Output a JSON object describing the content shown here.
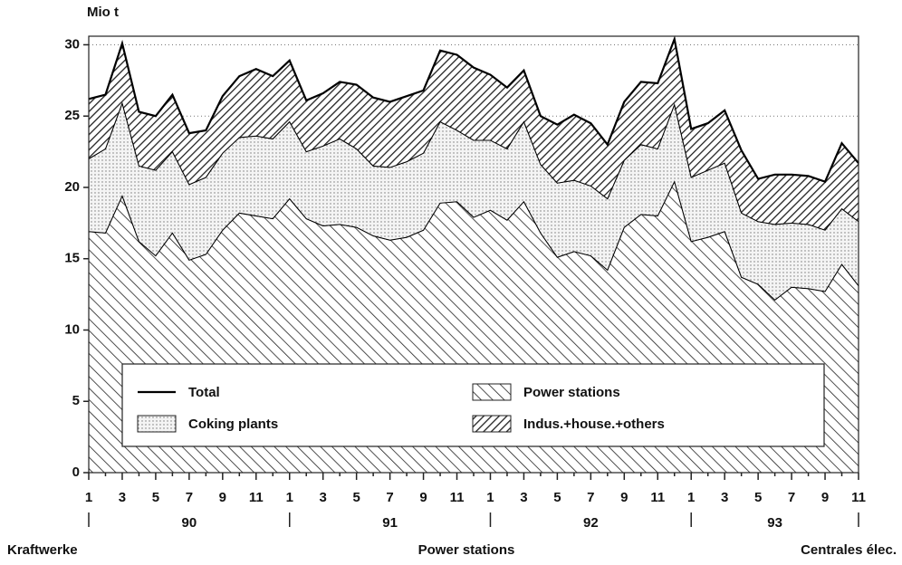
{
  "chart_data": {
    "type": "stacked_area",
    "y_axis_label": "Mio t",
    "categories": [
      "1",
      null,
      "3",
      null,
      "5",
      null,
      "7",
      null,
      "9",
      null,
      "11",
      null,
      "1",
      null,
      "3",
      null,
      "5",
      null,
      "7",
      null,
      "9",
      null,
      "11",
      null,
      "1",
      null,
      "3",
      null,
      "5",
      null,
      "7",
      null,
      "9",
      null,
      "11",
      null,
      "1",
      null,
      "3",
      null,
      "5",
      null,
      "7",
      null,
      "9",
      null,
      "11"
    ],
    "x_groups": [
      {
        "label": "90",
        "start": 0,
        "end": 12
      },
      {
        "label": "91",
        "start": 12,
        "end": 24
      },
      {
        "label": "92",
        "start": 24,
        "end": 36
      },
      {
        "label": "93",
        "start": 36,
        "end": 46
      }
    ],
    "series": [
      {
        "name": "Total",
        "kind": "line",
        "color": "#000000",
        "values": [
          26.2,
          26.5,
          30.1,
          25.3,
          25.0,
          26.5,
          23.8,
          24.0,
          26.4,
          27.8,
          28.3,
          27.8,
          28.9,
          26.1,
          26.6,
          27.4,
          27.2,
          26.3,
          26.0,
          26.4,
          26.8,
          29.6,
          29.3,
          28.4,
          27.9,
          27.0,
          28.2,
          25.0,
          24.4,
          25.1,
          24.5,
          23.0,
          26.0,
          27.4,
          27.3,
          30.4,
          24.1,
          24.5,
          25.4,
          22.6,
          20.6,
          20.9,
          20.9,
          20.8,
          20.4,
          23.1,
          21.7
        ]
      },
      {
        "name": "Power stations",
        "kind": "area",
        "pattern": "backslash",
        "color": "#000000",
        "values": [
          16.9,
          16.8,
          19.4,
          16.2,
          15.2,
          16.8,
          14.9,
          15.3,
          17.0,
          18.2,
          18.0,
          17.8,
          19.2,
          17.8,
          17.3,
          17.4,
          17.2,
          16.6,
          16.3,
          16.5,
          17.0,
          18.9,
          19.0,
          17.9,
          18.4,
          17.7,
          19.0,
          16.8,
          15.1,
          15.5,
          15.2,
          14.2,
          17.2,
          18.1,
          18.0,
          20.4,
          16.2,
          16.5,
          16.9,
          13.7,
          13.2,
          12.1,
          13.0,
          12.9,
          12.7,
          14.6,
          13.1
        ]
      },
      {
        "name": "Coking plants",
        "kind": "area",
        "pattern": "dots",
        "color": "#000000",
        "values": [
          5.1,
          5.9,
          6.5,
          5.3,
          6.0,
          5.7,
          5.3,
          5.4,
          5.4,
          5.3,
          5.6,
          5.6,
          5.4,
          4.7,
          5.6,
          6.0,
          5.5,
          4.9,
          5.1,
          5.3,
          5.4,
          5.7,
          5.0,
          5.4,
          4.9,
          5.0,
          5.6,
          4.8,
          5.2,
          5.0,
          4.9,
          5.0,
          4.7,
          4.9,
          4.7,
          5.4,
          4.5,
          4.7,
          4.8,
          4.5,
          4.4,
          5.3,
          4.5,
          4.5,
          4.3,
          3.9,
          4.5
        ]
      },
      {
        "name": "Indus.+house.+others",
        "kind": "area",
        "pattern": "slash",
        "color": "#000000",
        "values": [
          4.2,
          3.8,
          4.2,
          3.8,
          3.8,
          4.0,
          3.6,
          3.3,
          4.0,
          4.3,
          4.7,
          4.4,
          4.3,
          3.6,
          3.7,
          4.0,
          4.5,
          4.8,
          4.6,
          4.6,
          4.4,
          5.0,
          5.3,
          5.1,
          4.6,
          4.3,
          3.6,
          3.4,
          4.1,
          4.6,
          4.4,
          3.8,
          4.1,
          4.4,
          4.6,
          4.6,
          3.4,
          3.3,
          3.7,
          4.4,
          3.0,
          3.5,
          3.4,
          3.4,
          3.4,
          4.6,
          4.1
        ]
      }
    ],
    "ylim": [
      0,
      30.6
    ],
    "yticks": [
      0,
      5,
      10,
      15,
      20,
      25,
      30
    ],
    "grid": true,
    "footer": {
      "left": "Kraftwerke",
      "center": "Power stations",
      "right": "Centrales élec."
    }
  }
}
